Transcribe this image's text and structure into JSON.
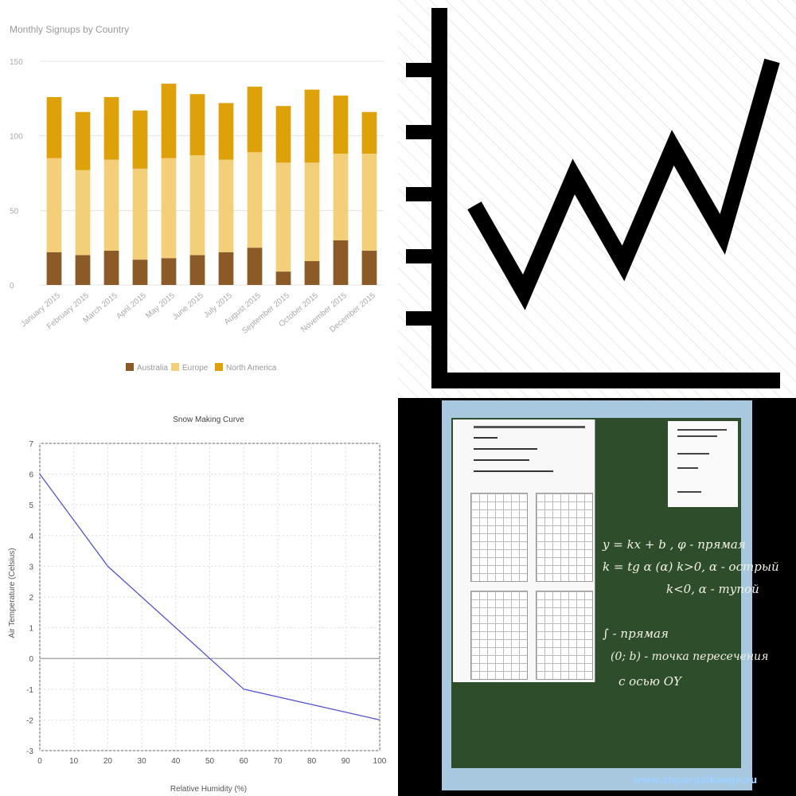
{
  "chart_data": [
    {
      "type": "bar",
      "stacked": true,
      "title": "Monthly Signups by Country",
      "categories": [
        "January 2015",
        "February 2015",
        "March 2015",
        "April 2015",
        "May 2015",
        "June 2015",
        "July 2015",
        "August 2015",
        "September 2015",
        "October 2015",
        "November 2015",
        "December 2015"
      ],
      "series": [
        {
          "name": "Australia",
          "color": "#8b5a26",
          "values": [
            22,
            20,
            23,
            17,
            18,
            20,
            22,
            25,
            9,
            16,
            30,
            23
          ]
        },
        {
          "name": "Europe",
          "color": "#f3cf79",
          "values": [
            63,
            57,
            61,
            61,
            67,
            67,
            62,
            64,
            73,
            66,
            58,
            65
          ]
        },
        {
          "name": "North America",
          "color": "#dfa10a",
          "values": [
            41,
            39,
            42,
            39,
            50,
            41,
            38,
            44,
            38,
            49,
            39,
            28
          ]
        }
      ],
      "yticks": [
        "0",
        "50",
        "100",
        "150"
      ],
      "ylim": [
        0,
        150
      ],
      "grid": true,
      "legend_position": "bottom"
    },
    {
      "type": "line",
      "description_icon": "rising-line-chart-icon",
      "series": [
        {
          "values": [
            5,
            2,
            6,
            3,
            7,
            4,
            10
          ]
        }
      ]
    },
    {
      "type": "line",
      "title": "Snow Making Curve",
      "xlabel": "Relative Humidity (%)",
      "ylabel": "Air Temperature (Celsius)",
      "xlim": [
        0,
        100
      ],
      "ylim": [
        -3,
        7
      ],
      "xticks": [
        "0",
        "10",
        "20",
        "30",
        "40",
        "50",
        "60",
        "70",
        "80",
        "90",
        "100"
      ],
      "yticks": [
        "-3",
        "-2",
        "-1",
        "0",
        "1",
        "2",
        "3",
        "4",
        "5",
        "6",
        "7"
      ],
      "series": [
        {
          "color": "#5555cc",
          "x": [
            0,
            20,
            60,
            100
          ],
          "y": [
            6,
            3,
            -1,
            -2
          ]
        }
      ],
      "grid": true
    }
  ],
  "photo": {
    "site_url": "www.shpargalkaege.ru",
    "chalk_lines": [
      "y = kx + b ,  φ - прямая",
      "k = tg α (α)   k>0, α - острый",
      "k<0, α - тупой",
      "∫ - прямая",
      "(0; b) - точка пересечения",
      "с осью OY"
    ]
  }
}
